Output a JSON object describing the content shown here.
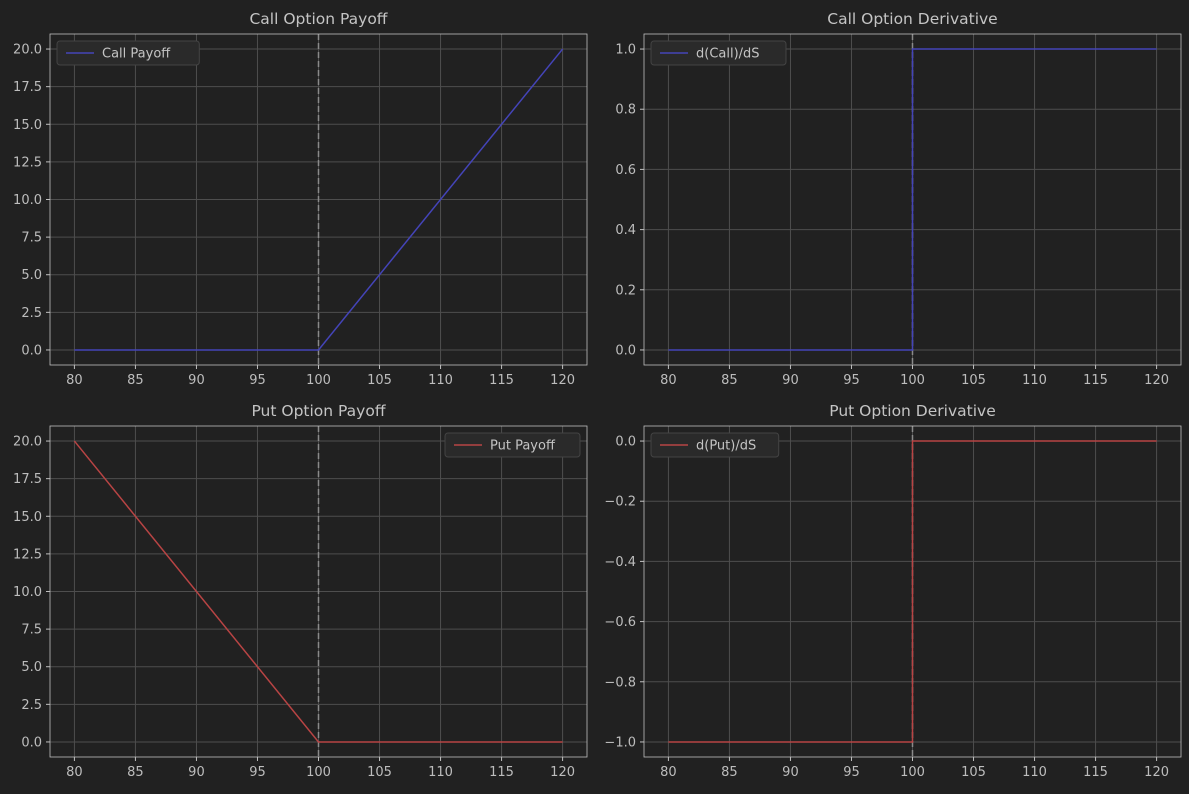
{
  "figure": {
    "background": "#212121"
  },
  "chart_data": [
    {
      "type": "line",
      "title": "Call Option Payoff",
      "xlabel": "",
      "ylabel": "",
      "xlim": [
        78,
        122
      ],
      "ylim": [
        -1.0,
        21.0
      ],
      "xticks": [
        80,
        85,
        90,
        95,
        100,
        105,
        110,
        115,
        120
      ],
      "yticks": [
        0.0,
        2.5,
        5.0,
        7.5,
        10.0,
        12.5,
        15.0,
        17.5,
        20.0
      ],
      "ytick_labels": [
        "0.0",
        "2.5",
        "5.0",
        "7.5",
        "10.0",
        "12.5",
        "15.0",
        "17.5",
        "20.0"
      ],
      "grid": true,
      "legend_position": "upper-left",
      "vline": {
        "x": 100,
        "style": "dashed",
        "color": "#8a8a8a"
      },
      "series": [
        {
          "name": "Call Payoff",
          "color": "#4444b8",
          "x": [
            80,
            100,
            120
          ],
          "y": [
            0,
            0,
            20
          ]
        }
      ]
    },
    {
      "type": "line",
      "title": "Call Option Derivative",
      "xlabel": "",
      "ylabel": "",
      "xlim": [
        78,
        122
      ],
      "ylim": [
        -0.05,
        1.05
      ],
      "xticks": [
        80,
        85,
        90,
        95,
        100,
        105,
        110,
        115,
        120
      ],
      "yticks": [
        0.0,
        0.2,
        0.4,
        0.6,
        0.8,
        1.0
      ],
      "ytick_labels": [
        "0.0",
        "0.2",
        "0.4",
        "0.6",
        "0.8",
        "1.0"
      ],
      "grid": true,
      "legend_position": "upper-left",
      "vline": {
        "x": 100,
        "style": "dashed",
        "color": "#8a8a8a"
      },
      "series": [
        {
          "name": "d(Call)/dS",
          "color": "#4444b8",
          "x": [
            80,
            100,
            100,
            120
          ],
          "y": [
            0,
            0,
            1,
            1
          ]
        }
      ]
    },
    {
      "type": "line",
      "title": "Put Option Payoff",
      "xlabel": "",
      "ylabel": "",
      "xlim": [
        78,
        122
      ],
      "ylim": [
        -1.0,
        21.0
      ],
      "xticks": [
        80,
        85,
        90,
        95,
        100,
        105,
        110,
        115,
        120
      ],
      "yticks": [
        0.0,
        2.5,
        5.0,
        7.5,
        10.0,
        12.5,
        15.0,
        17.5,
        20.0
      ],
      "ytick_labels": [
        "0.0",
        "2.5",
        "5.0",
        "7.5",
        "10.0",
        "12.5",
        "15.0",
        "17.5",
        "20.0"
      ],
      "grid": true,
      "legend_position": "upper-right",
      "vline": {
        "x": 100,
        "style": "dashed",
        "color": "#8a8a8a"
      },
      "series": [
        {
          "name": "Put Payoff",
          "color": "#b84444",
          "x": [
            80,
            100,
            120
          ],
          "y": [
            20,
            0,
            0
          ]
        }
      ]
    },
    {
      "type": "line",
      "title": "Put Option Derivative",
      "xlabel": "",
      "ylabel": "",
      "xlim": [
        78,
        122
      ],
      "ylim": [
        -1.05,
        0.05
      ],
      "xticks": [
        80,
        85,
        90,
        95,
        100,
        105,
        110,
        115,
        120
      ],
      "yticks": [
        -1.0,
        -0.8,
        -0.6,
        -0.4,
        -0.2,
        0.0
      ],
      "ytick_labels": [
        "−1.0",
        "−0.8",
        "−0.6",
        "−0.4",
        "−0.2",
        "0.0"
      ],
      "grid": true,
      "legend_position": "upper-left",
      "vline": {
        "x": 100,
        "style": "dashed",
        "color": "#8a8a8a"
      },
      "series": [
        {
          "name": "d(Put)/dS",
          "color": "#b84444",
          "x": [
            80,
            100,
            100,
            120
          ],
          "y": [
            -1,
            -1,
            0,
            0
          ]
        }
      ]
    }
  ]
}
